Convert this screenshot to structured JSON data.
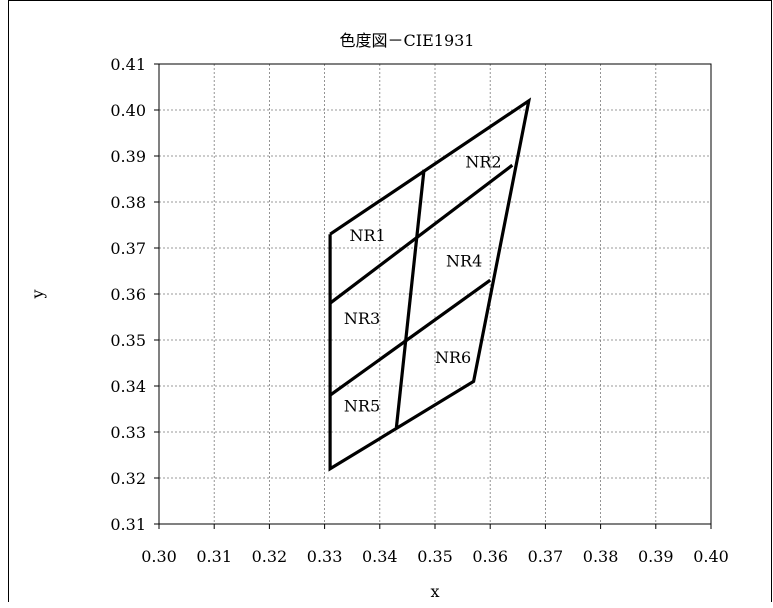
{
  "chart_data": {
    "type": "line",
    "title": "色度図－CIE1931",
    "xlabel": "x",
    "ylabel": "y",
    "xlim": [
      0.3,
      0.4
    ],
    "ylim": [
      0.31,
      0.41
    ],
    "x_ticks": [
      "0.30",
      "0.31",
      "0.32",
      "0.33",
      "0.34",
      "0.35",
      "0.36",
      "0.37",
      "0.38",
      "0.39",
      "0.40"
    ],
    "y_ticks": [
      "0.41",
      "0.40",
      "0.39",
      "0.38",
      "0.37",
      "0.36",
      "0.35",
      "0.34",
      "0.33",
      "0.32",
      "0.31"
    ],
    "grid": "dashed",
    "series": [
      {
        "points": [
          [
            0.331,
            0.373
          ],
          [
            0.367,
            0.402
          ],
          [
            0.357,
            0.341
          ],
          [
            0.331,
            0.322
          ],
          [
            0.331,
            0.373
          ]
        ]
      },
      {
        "points": [
          [
            0.331,
            0.358
          ],
          [
            0.364,
            0.388
          ]
        ]
      },
      {
        "points": [
          [
            0.331,
            0.338
          ],
          [
            0.36,
            0.363
          ]
        ]
      },
      {
        "points": [
          [
            0.348,
            0.387
          ],
          [
            0.343,
            0.331
          ]
        ]
      }
    ],
    "annotations": [
      {
        "text": "NR1",
        "x": 0.3345,
        "y": 0.3715
      },
      {
        "text": "NR2",
        "x": 0.3555,
        "y": 0.3875
      },
      {
        "text": "NR3",
        "x": 0.3335,
        "y": 0.3535
      },
      {
        "text": "NR4",
        "x": 0.352,
        "y": 0.366
      },
      {
        "text": "NR5",
        "x": 0.3335,
        "y": 0.3345
      },
      {
        "text": "NR6",
        "x": 0.35,
        "y": 0.345
      }
    ]
  }
}
